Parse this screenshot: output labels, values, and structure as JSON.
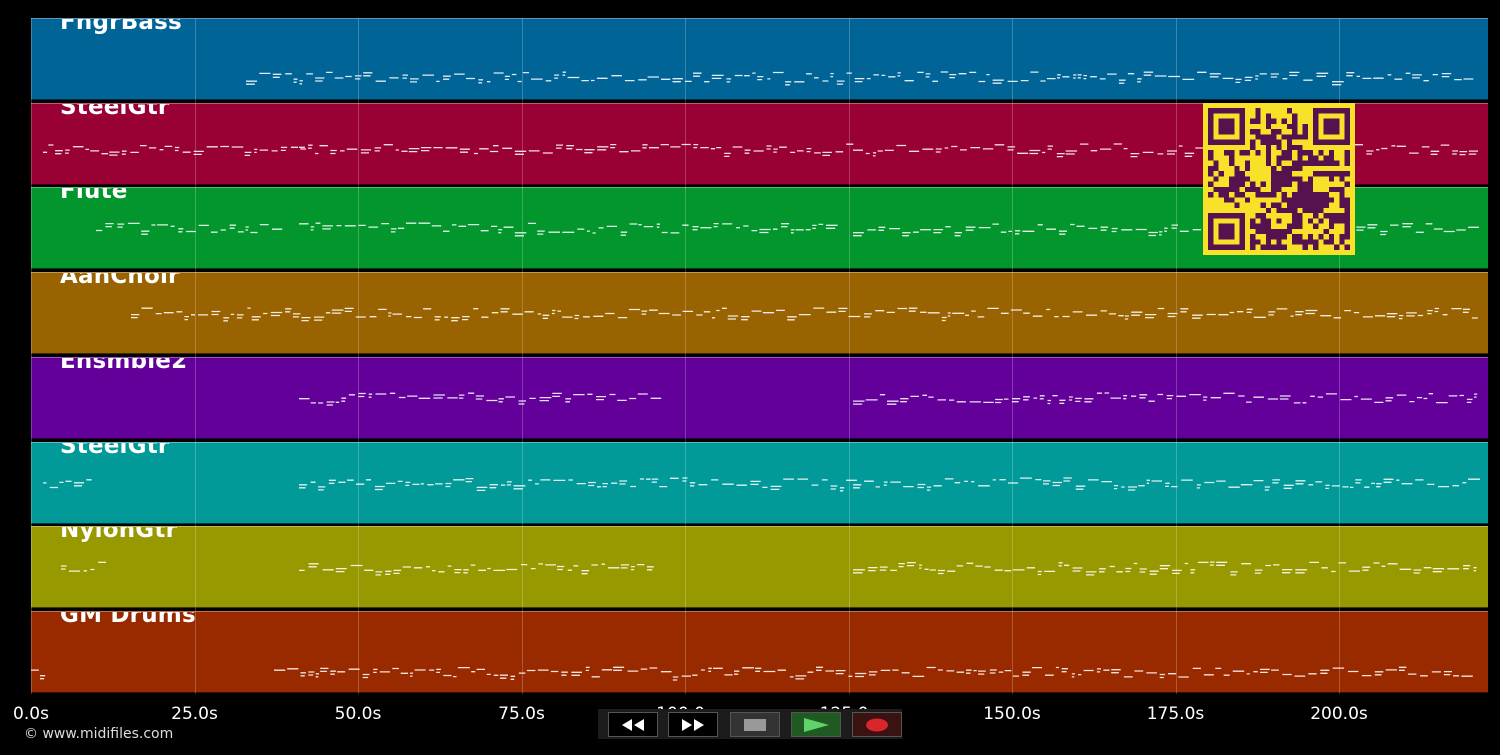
{
  "tracks": [
    {
      "name": "FngrBass",
      "color": "#016497"
    },
    {
      "name": "SteelGtr",
      "color": "#990033"
    },
    {
      "name": "Flute",
      "color": "#02962c"
    },
    {
      "name": "AahChoir",
      "color": "#986300"
    },
    {
      "name": "Ensmble2",
      "color": "#620099"
    },
    {
      "name": "SteelGtr",
      "color": "#029999"
    },
    {
      "name": "NylonGtr",
      "color": "#989900"
    },
    {
      "name": "GM Drums",
      "color": "#992a00"
    }
  ],
  "time_axis": {
    "ticks": [
      "0.0s",
      "25.0s",
      "50.0s",
      "75.0s",
      "100.0s",
      "125.0s",
      "150.0s",
      "175.0s",
      "200.0s"
    ]
  },
  "copyright": "© www.midifiles.com",
  "transport": {
    "rewind": "rewind-icon",
    "fast_forward": "fast-forward-icon",
    "stop": "stop-icon",
    "play": "play-icon",
    "record": "record-icon"
  },
  "qr_colors": {
    "background": "#f8e129",
    "modules": "#56114f"
  }
}
